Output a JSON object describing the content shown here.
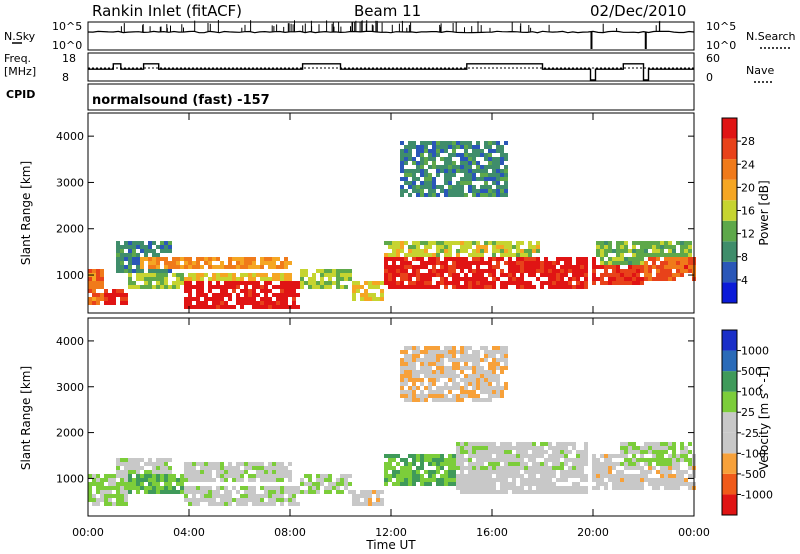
{
  "header": {
    "station": "Rankin Inlet (fitACF)",
    "beam": "Beam 11",
    "date": "02/Dec/2010"
  },
  "strip_panels": {
    "nsky_label": "N.Sky",
    "nsky_ticks": [
      "10^5",
      "10^0"
    ],
    "nsearch_label": "N.Search",
    "nsearch_ticks": [
      "10^5",
      "10^0"
    ],
    "freq_label_1": "Freq.",
    "freq_label_2": "[MHz]",
    "freq_ticks": [
      "18",
      "8"
    ],
    "nave_label": "Nave",
    "nave_ticks": [
      "60",
      "0"
    ],
    "cpid_label": "CPID",
    "cpid_text": "normalsound (fast) -157"
  },
  "axes": {
    "ylabel": "Slant Range [km]",
    "xlabel": "Time UT",
    "yticks": [
      "4000",
      "3000",
      "2000",
      "1000"
    ],
    "xticks": [
      "00:00",
      "04:00",
      "08:00",
      "12:00",
      "16:00",
      "20:00",
      "00:00"
    ]
  },
  "colors": {
    "power": [
      "#0b1bd8",
      "#2a57b8",
      "#3f8d6b",
      "#5ea84a",
      "#c6d430",
      "#f5a623",
      "#f07a1a",
      "#e8421a",
      "#e01414"
    ],
    "velocity": [
      "#e01414",
      "#f05a1a",
      "#f7a13a",
      "#c8c8c8",
      "#c8c8c8",
      "#7ccd3a",
      "#3f9a5a",
      "#2a6bb8",
      "#1a2fc8"
    ]
  },
  "chart_data": [
    {
      "type": "heatmap",
      "title": "",
      "xlabel": "Time UT",
      "ylabel": "Slant Range [km]",
      "xlim": [
        0,
        24
      ],
      "ylim": [
        180,
        4500
      ],
      "colorbar_label": "Power [dB]",
      "colorbar_ticks": [
        "28",
        "24",
        "20",
        "16",
        "12",
        "8",
        "4"
      ],
      "colorbar_range": [
        0,
        30
      ],
      "regions": [
        {
          "x": [
            0,
            0.6
          ],
          "y": [
            400,
            1200
          ],
          "value": 22
        },
        {
          "x": [
            0.6,
            1.5
          ],
          "y": [
            400,
            700
          ],
          "value": 28
        },
        {
          "x": [
            1,
            3.2
          ],
          "y": [
            1100,
            1800
          ],
          "value": 8
        },
        {
          "x": [
            1.5,
            3.8
          ],
          "y": [
            700,
            1100
          ],
          "value": 14
        },
        {
          "x": [
            3.8,
            8.3
          ],
          "y": [
            300,
            900
          ],
          "value": 29
        },
        {
          "x": [
            3.8,
            8
          ],
          "y": [
            900,
            1100
          ],
          "value": 17
        },
        {
          "x": [
            2,
            8
          ],
          "y": [
            1200,
            1400
          ],
          "value": 20
        },
        {
          "x": [
            8.3,
            10.3
          ],
          "y": [
            700,
            1200
          ],
          "value": 14
        },
        {
          "x": [
            10.3,
            11.6
          ],
          "y": [
            500,
            900
          ],
          "value": 16
        },
        {
          "x": [
            11.6,
            19.8
          ],
          "y": [
            700,
            1400
          ],
          "value": 28
        },
        {
          "x": [
            11.6,
            17.8
          ],
          "y": [
            1400,
            1800
          ],
          "value": 15
        },
        {
          "x": [
            12.2,
            16.5
          ],
          "y": [
            2700,
            3900
          ],
          "value": 8
        },
        {
          "x": [
            19.9,
            22
          ],
          "y": [
            800,
            1400
          ],
          "value": 26
        },
        {
          "x": [
            20,
            23.8
          ],
          "y": [
            1300,
            1800
          ],
          "value": 12
        },
        {
          "x": [
            22,
            24
          ],
          "y": [
            900,
            1400
          ],
          "value": 24
        }
      ]
    },
    {
      "type": "heatmap",
      "title": "",
      "xlabel": "Time UT",
      "ylabel": "Slant Range [km]",
      "xlim": [
        0,
        24
      ],
      "ylim": [
        180,
        4500
      ],
      "colorbar_label": "Velocity [m s^-1]",
      "colorbar_ticks": [
        "1000",
        "500",
        "100",
        "25",
        "-25",
        "-100",
        "-500",
        "-1000"
      ],
      "colorbar_range": [
        -1000,
        1000
      ],
      "regions": [
        {
          "x": [
            0,
            1.5
          ],
          "y": [
            400,
            1100
          ],
          "value": 150
        },
        {
          "x": [
            1.5,
            3.8
          ],
          "y": [
            700,
            1100
          ],
          "value": 300
        },
        {
          "x": [
            1,
            3.2
          ],
          "y": [
            1100,
            1500
          ],
          "value": 0
        },
        {
          "x": [
            3.8,
            8.3
          ],
          "y": [
            400,
            900
          ],
          "value": 0
        },
        {
          "x": [
            3.8,
            8
          ],
          "y": [
            1000,
            1400
          ],
          "value": 0
        },
        {
          "x": [
            8.3,
            10.3
          ],
          "y": [
            700,
            1100
          ],
          "value": 150
        },
        {
          "x": [
            10.3,
            11.6
          ],
          "y": [
            400,
            800
          ],
          "value": -200
        },
        {
          "x": [
            11.6,
            14.5
          ],
          "y": [
            900,
            1600
          ],
          "value": 300
        },
        {
          "x": [
            14.5,
            19.8
          ],
          "y": [
            1200,
            1800
          ],
          "value": 0
        },
        {
          "x": [
            14.5,
            19.8
          ],
          "y": [
            700,
            1200
          ],
          "value": -150
        },
        {
          "x": [
            12.2,
            16.5
          ],
          "y": [
            2700,
            3900
          ],
          "value": -300
        },
        {
          "x": [
            19.9,
            24
          ],
          "y": [
            800,
            1600
          ],
          "value": -200
        },
        {
          "x": [
            21,
            23.8
          ],
          "y": [
            1300,
            1800
          ],
          "value": 150
        }
      ]
    }
  ]
}
